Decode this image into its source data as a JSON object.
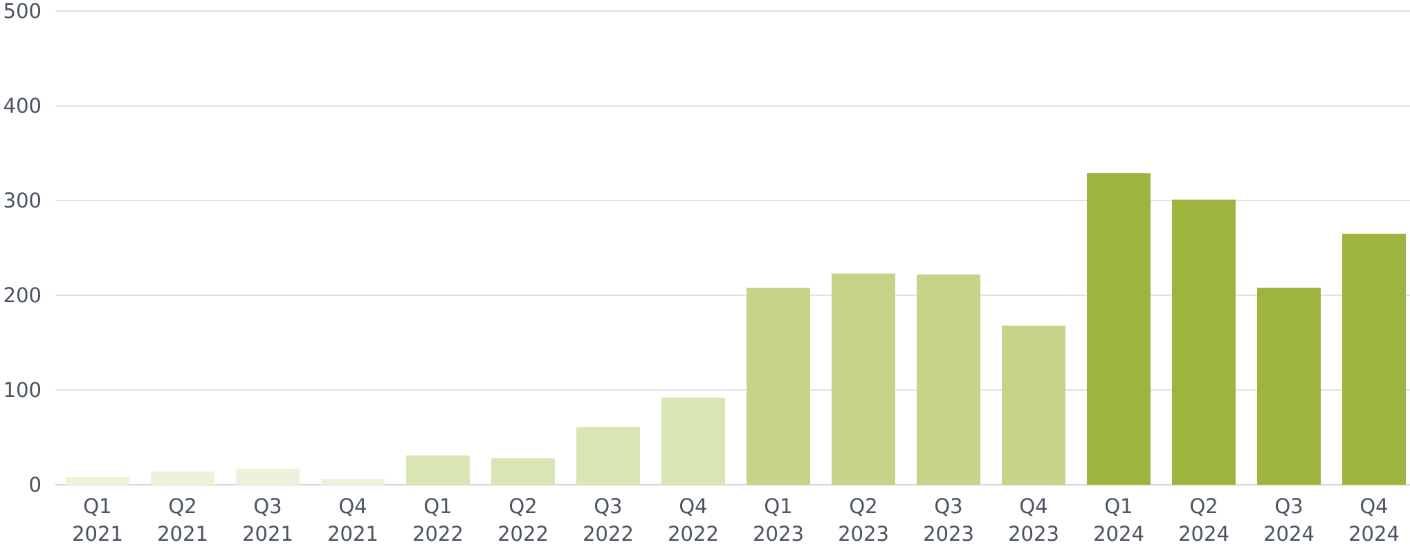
{
  "chart_data": {
    "type": "bar",
    "title": "",
    "xlabel": "",
    "ylabel": "",
    "ylim": [
      0,
      500
    ],
    "yticks": [
      0,
      100,
      200,
      300,
      400,
      500
    ],
    "grid": true,
    "categories": [
      [
        "Q1",
        "2021"
      ],
      [
        "Q2",
        "2021"
      ],
      [
        "Q3",
        "2021"
      ],
      [
        "Q4",
        "2021"
      ],
      [
        "Q1",
        "2022"
      ],
      [
        "Q2",
        "2022"
      ],
      [
        "Q3",
        "2022"
      ],
      [
        "Q4",
        "2022"
      ],
      [
        "Q1",
        "2023"
      ],
      [
        "Q2",
        "2023"
      ],
      [
        "Q3",
        "2023"
      ],
      [
        "Q4",
        "2023"
      ],
      [
        "Q1",
        "2024"
      ],
      [
        "Q2",
        "2024"
      ],
      [
        "Q3",
        "2024"
      ],
      [
        "Q4",
        "2024"
      ]
    ],
    "values": [
      8,
      14,
      17,
      6,
      31,
      28,
      61,
      92,
      208,
      223,
      222,
      168,
      329,
      301,
      208,
      265
    ],
    "bar_colors": [
      "#eef2da",
      "#eef2da",
      "#eef2da",
      "#eef2da",
      "#d9e5b3",
      "#d9e5b3",
      "#d9e5b3",
      "#d9e5b3",
      "#c5d488",
      "#c5d488",
      "#c5d488",
      "#c5d488",
      "#9db43e",
      "#9db43e",
      "#9db43e",
      "#9db43e"
    ],
    "text_color": "#4a5360",
    "grid_color": "#d9d9d9"
  }
}
